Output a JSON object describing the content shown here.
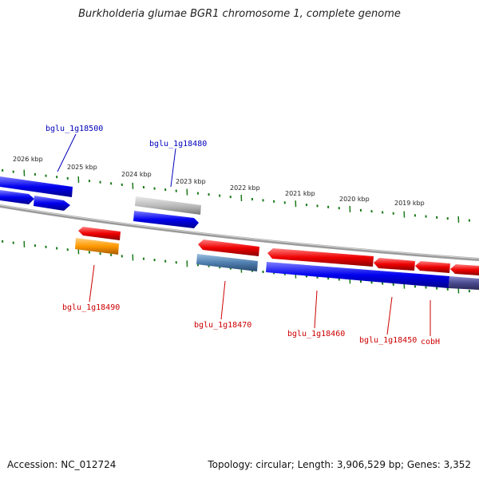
{
  "title": "Burkholderia glumae BGR1 chromosome 1, complete genome",
  "accession": "Accession: NC_012724",
  "summary": "Topology: circular; Length: 3,906,529 bp; Genes: 3,352",
  "colors": {
    "plus_strand": "#0000ee",
    "minus_strand": "#ee0000",
    "tick": "#1a7a1a",
    "backbone": "#777777",
    "label_blue": "#0000bb",
    "label_red": "#cc0000",
    "pseudo_gray": "#b8b8b8",
    "orange": "#ff9900",
    "steel": "#4f7fb0",
    "violet": "#4a4a8f"
  },
  "scale_labels": [
    {
      "text": "2026 kbp"
    },
    {
      "text": "2025 kbp"
    },
    {
      "text": "2024 kbp"
    },
    {
      "text": "2023 kbp"
    },
    {
      "text": "2022 kbp"
    },
    {
      "text": "2021 kbp"
    },
    {
      "text": "2020 kbp"
    },
    {
      "text": "2019 kbp"
    }
  ],
  "gene_labels": [
    {
      "name": "bglu_1g18500",
      "strand": "plus"
    },
    {
      "name": "bglu_1g18480",
      "strand": "plus"
    },
    {
      "name": "bglu_1g18490",
      "strand": "minus"
    },
    {
      "name": "bglu_1g18470",
      "strand": "minus"
    },
    {
      "name": "bglu_1g18460",
      "strand": "minus"
    },
    {
      "name": "bglu_1g18450",
      "strand": "minus"
    },
    {
      "name": "cobH",
      "strand": "minus"
    }
  ]
}
